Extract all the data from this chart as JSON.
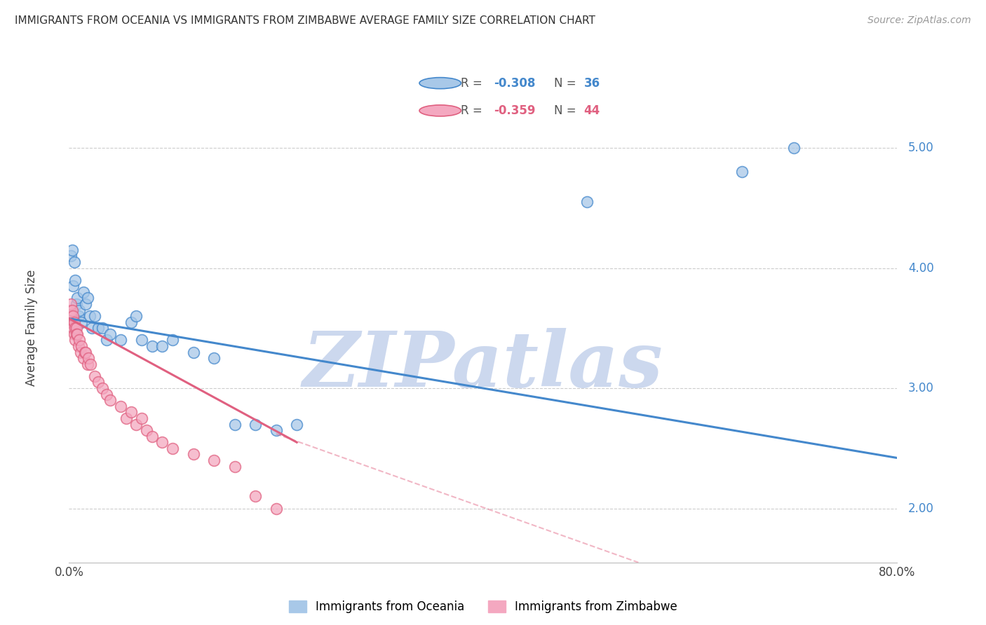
{
  "title": "IMMIGRANTS FROM OCEANIA VS IMMIGRANTS FROM ZIMBABWE AVERAGE FAMILY SIZE CORRELATION CHART",
  "source": "Source: ZipAtlas.com",
  "ylabel": "Average Family Size",
  "right_yticks": [
    2.0,
    3.0,
    4.0,
    5.0
  ],
  "xlim": [
    0.0,
    0.8
  ],
  "ylim": [
    1.55,
    5.45
  ],
  "legend_oceania": "Immigrants from Oceania",
  "legend_zimbabwe": "Immigrants from Zimbabwe",
  "R_oceania": -0.308,
  "N_oceania": 36,
  "R_zimbabwe": -0.359,
  "N_zimbabwe": 44,
  "color_oceania": "#a8c8e8",
  "color_zimbabwe": "#f4a8c0",
  "color_line_oceania": "#4488cc",
  "color_line_zimbabwe": "#e06080",
  "watermark": "ZIPatlas",
  "watermark_color": "#ccd8ee",
  "oceania_x": [
    0.002,
    0.003,
    0.004,
    0.005,
    0.006,
    0.007,
    0.008,
    0.009,
    0.01,
    0.012,
    0.014,
    0.016,
    0.018,
    0.02,
    0.022,
    0.025,
    0.028,
    0.032,
    0.036,
    0.04,
    0.05,
    0.06,
    0.065,
    0.07,
    0.08,
    0.09,
    0.1,
    0.12,
    0.14,
    0.16,
    0.18,
    0.2,
    0.22,
    0.5,
    0.65,
    0.7
  ],
  "oceania_y": [
    4.1,
    4.15,
    3.85,
    4.05,
    3.9,
    3.7,
    3.75,
    3.6,
    3.65,
    3.55,
    3.8,
    3.7,
    3.75,
    3.6,
    3.5,
    3.6,
    3.5,
    3.5,
    3.4,
    3.45,
    3.4,
    3.55,
    3.6,
    3.4,
    3.35,
    3.35,
    3.4,
    3.3,
    3.25,
    2.7,
    2.7,
    2.65,
    2.7,
    4.55,
    4.8,
    5.0
  ],
  "zimbabwe_x": [
    0.001,
    0.001,
    0.002,
    0.002,
    0.003,
    0.003,
    0.004,
    0.004,
    0.005,
    0.005,
    0.006,
    0.006,
    0.007,
    0.007,
    0.008,
    0.009,
    0.01,
    0.011,
    0.012,
    0.014,
    0.015,
    0.016,
    0.018,
    0.019,
    0.021,
    0.025,
    0.028,
    0.032,
    0.036,
    0.04,
    0.05,
    0.055,
    0.06,
    0.065,
    0.07,
    0.075,
    0.08,
    0.09,
    0.1,
    0.12,
    0.14,
    0.16,
    0.18,
    0.2
  ],
  "zimbabwe_y": [
    3.65,
    3.55,
    3.7,
    3.6,
    3.65,
    3.55,
    3.6,
    3.5,
    3.55,
    3.45,
    3.5,
    3.4,
    3.5,
    3.45,
    3.45,
    3.35,
    3.4,
    3.3,
    3.35,
    3.25,
    3.3,
    3.3,
    3.2,
    3.25,
    3.2,
    3.1,
    3.05,
    3.0,
    2.95,
    2.9,
    2.85,
    2.75,
    2.8,
    2.7,
    2.75,
    2.65,
    2.6,
    2.55,
    2.5,
    2.45,
    2.4,
    2.35,
    2.1,
    2.0
  ],
  "regline_oceania_x0": 0.0,
  "regline_oceania_x1": 0.8,
  "regline_oceania_y0": 3.58,
  "regline_oceania_y1": 2.42,
  "regline_zimbabwe_solid_x0": 0.0,
  "regline_zimbabwe_solid_x1": 0.22,
  "regline_zimbabwe_y0": 3.58,
  "regline_zimbabwe_y1": 2.55,
  "regline_zimbabwe_dash_x0": 0.2,
  "regline_zimbabwe_dash_x1": 0.55,
  "regline_zimbabwe_dash_y0": 2.62,
  "regline_zimbabwe_dash_y1": 1.55
}
